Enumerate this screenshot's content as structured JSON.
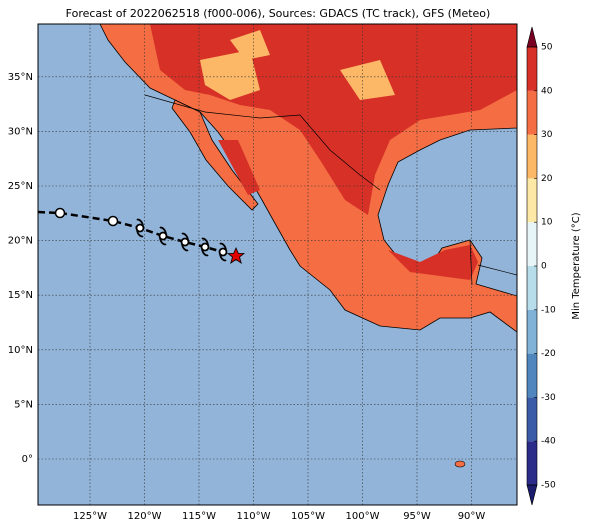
{
  "map": {
    "title": "Forecast of 2022062518 (f000-006), Sources: GDACS (TC track), GFS (Meteo)",
    "lon_ticks": [
      {
        "value": -125,
        "label": "125°W"
      },
      {
        "value": -120,
        "label": "120°W"
      },
      {
        "value": -115,
        "label": "115°W"
      },
      {
        "value": -110,
        "label": "110°W"
      },
      {
        "value": -105,
        "label": "105°W"
      },
      {
        "value": -100,
        "label": "100°W"
      },
      {
        "value": -95,
        "label": "95°W"
      },
      {
        "value": -90,
        "label": "90°W"
      }
    ],
    "lat_ticks": [
      {
        "value": 35,
        "label": "35°N"
      },
      {
        "value": 30,
        "label": "30°N"
      },
      {
        "value": 25,
        "label": "25°N"
      },
      {
        "value": 20,
        "label": "20°N"
      },
      {
        "value": 15,
        "label": "15°N"
      },
      {
        "value": 10,
        "label": "10°N"
      },
      {
        "value": 5,
        "label": "5°N"
      },
      {
        "value": 0,
        "label": "0°"
      }
    ],
    "colorbar": {
      "label": "Min Temperature (°C)",
      "ticks": [
        -50,
        -40,
        -30,
        -20,
        -10,
        0,
        10,
        20,
        30,
        40,
        50
      ],
      "colors": [
        "#2b2c8a",
        "#3a5ba8",
        "#4f86bd",
        "#7fb2d6",
        "#b7dcea",
        "#e8f5f8",
        "#fee8a6",
        "#fdb867",
        "#f46d43",
        "#d73027",
        "#a50026"
      ],
      "under_color": "#1c1c6e",
      "over_color": "#7a0022"
    }
  }
}
